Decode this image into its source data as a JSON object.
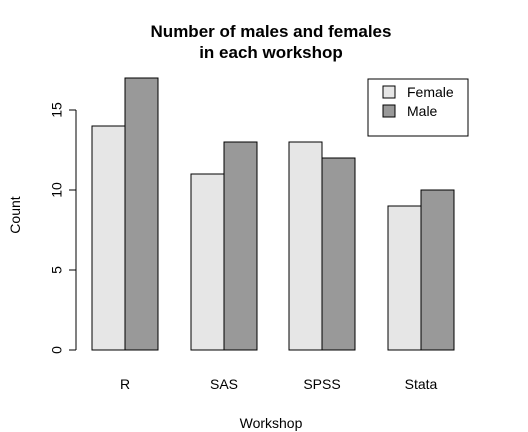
{
  "chart_data": {
    "type": "bar",
    "title_lines": [
      "Number of males and females",
      "in each workshop"
    ],
    "title": "Number of males and females in each workshop",
    "xlabel": "Workshop",
    "ylabel": "Count",
    "categories": [
      "R",
      "SAS",
      "SPSS",
      "Stata"
    ],
    "series": [
      {
        "name": "Female",
        "values": [
          14,
          11,
          13,
          9
        ],
        "color": "#e6e6e6"
      },
      {
        "name": "Male",
        "values": [
          17,
          13,
          12,
          10
        ],
        "color": "#999999"
      }
    ],
    "ylim": [
      0,
      17
    ],
    "yticks": [
      0,
      5,
      10,
      15
    ],
    "grid": false,
    "legend_position": "top-right",
    "bar_border_color": "#000000"
  }
}
